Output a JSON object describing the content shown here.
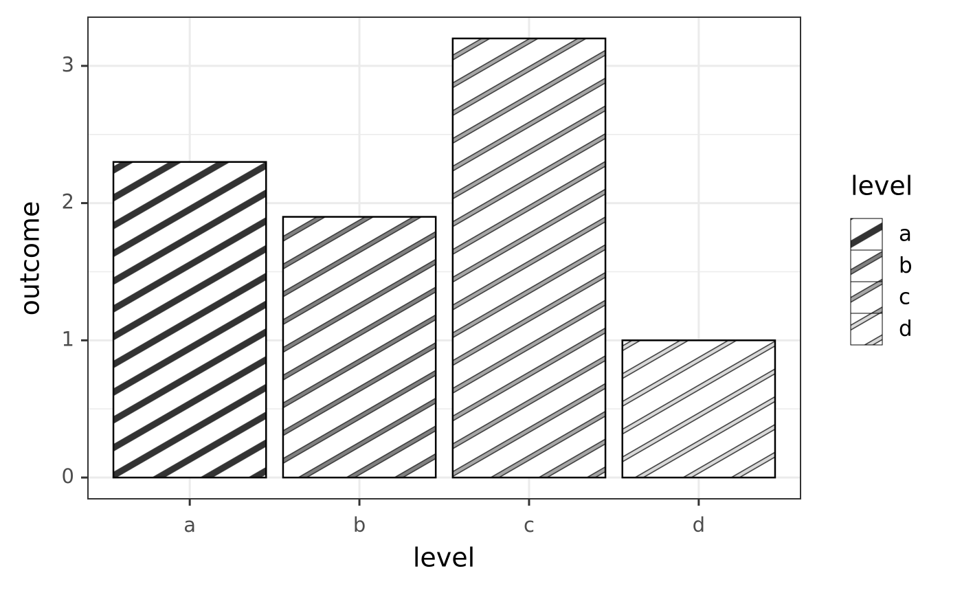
{
  "chart_data": {
    "type": "bar",
    "x_label": "level",
    "y_label": "outcome",
    "legend_title": "level",
    "categories": [
      "a",
      "b",
      "c",
      "d"
    ],
    "values": [
      2.3,
      1.9,
      3.2,
      1.0
    ],
    "colors": [
      "#333333",
      "#808080",
      "#a6a6a6",
      "#d9d9d9"
    ],
    "ylim": [
      -0.155,
      3.355
    ],
    "yticks": [
      0,
      1,
      2,
      3
    ],
    "grid": true,
    "legend": "right"
  }
}
